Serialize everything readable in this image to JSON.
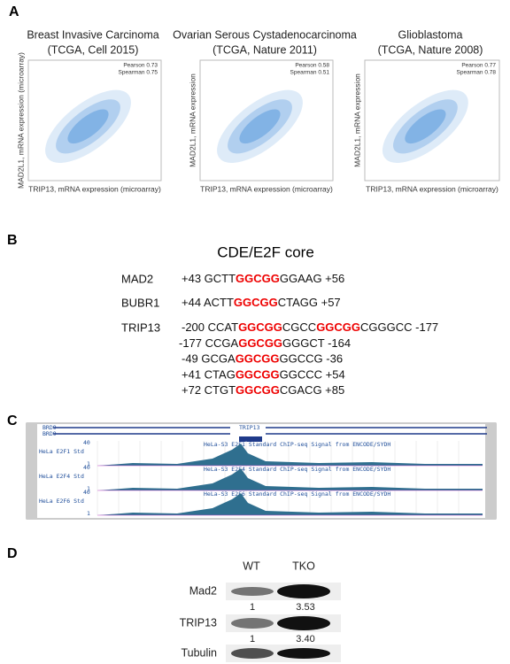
{
  "panel_a": {
    "label": "A",
    "plots": [
      {
        "title": "Breast Invasive Carcinoma",
        "subtitle": "(TCGA, Cell 2015)",
        "pearson": "Pearson 0.73",
        "spearman": "Spearman 0.75",
        "y_label": "MAD2L1, mRNA expression (microarray)",
        "x_label": "TRIP13, mRNA expression (microarray)"
      },
      {
        "title": "Ovarian Serous Cystadenocarcinoma",
        "subtitle": "(TCGA, Nature 2011)",
        "pearson": "Pearson 0.58",
        "spearman": "Spearman 0.51",
        "y_label": "MAD2L1, mRNA expression",
        "x_label": "TRIP13, mRNA expression (microarray)"
      },
      {
        "title": "Glioblastoma",
        "subtitle": "(TCGA, Nature 2008)",
        "pearson": "Pearson 0.77",
        "spearman": "Spearman 0.78",
        "y_label": "MAD2L1, mRNA expression",
        "x_label": "TRIP13, mRNA expression (microarray)"
      }
    ]
  },
  "panel_b": {
    "label": "B",
    "title": "CDE/E2F core",
    "rows": [
      {
        "gene": "MAD2",
        "lines": [
          [
            "+43 GCTT",
            "GGCGG",
            "GGAAG +56"
          ]
        ]
      },
      {
        "gene": "BUBR1",
        "lines": [
          [
            "+44 ACTT",
            "GGCGG",
            "CTAGG +57"
          ]
        ]
      },
      {
        "gene": "TRIP13",
        "lines": [
          [
            "-200 CCAT",
            "GGCGG",
            "CGCC",
            "GGCGG",
            "CGGGCC -177"
          ],
          [
            "-177 CCGA",
            "GGCGG",
            "GGGCT -164"
          ],
          [
            "-49 GCGA",
            "GGCGG",
            "GGCCG -36"
          ],
          [
            "+41 CTAG",
            "GGCGG",
            "GGCCC +54"
          ],
          [
            "+72 CTGT",
            "GGCGG",
            "CGACG +85"
          ]
        ]
      }
    ]
  },
  "panel_c": {
    "label": "C",
    "genes": [
      "BRD9",
      "BRD9",
      "TRIP13"
    ],
    "tracks": [
      {
        "name": "HeLa E2F1 Std",
        "desc": "HeLa-S3 E2F1 Standard ChIP-seq Signal from ENCODE/SYDH",
        "max": "40",
        "min": "1"
      },
      {
        "name": "HeLa E2F4 Std",
        "desc": "HeLa-S3 E2F4 Standard ChIP-seq Signal from ENCODE/SYDH",
        "max": "40",
        "min": "1"
      },
      {
        "name": "HeLa E2F6 Std",
        "desc": "HeLa-S3 E2F6 Standard ChIP-seq Signal from ENCODE/SYDH",
        "max": "40",
        "min": "1"
      }
    ]
  },
  "panel_d": {
    "label": "D",
    "columns": [
      "WT",
      "TKO"
    ],
    "rows": [
      {
        "name": "Mad2",
        "quant": [
          "1",
          "3.53"
        ]
      },
      {
        "name": "TRIP13",
        "quant": [
          "1",
          "3.40"
        ]
      },
      {
        "name": "Tubulin"
      }
    ]
  }
}
